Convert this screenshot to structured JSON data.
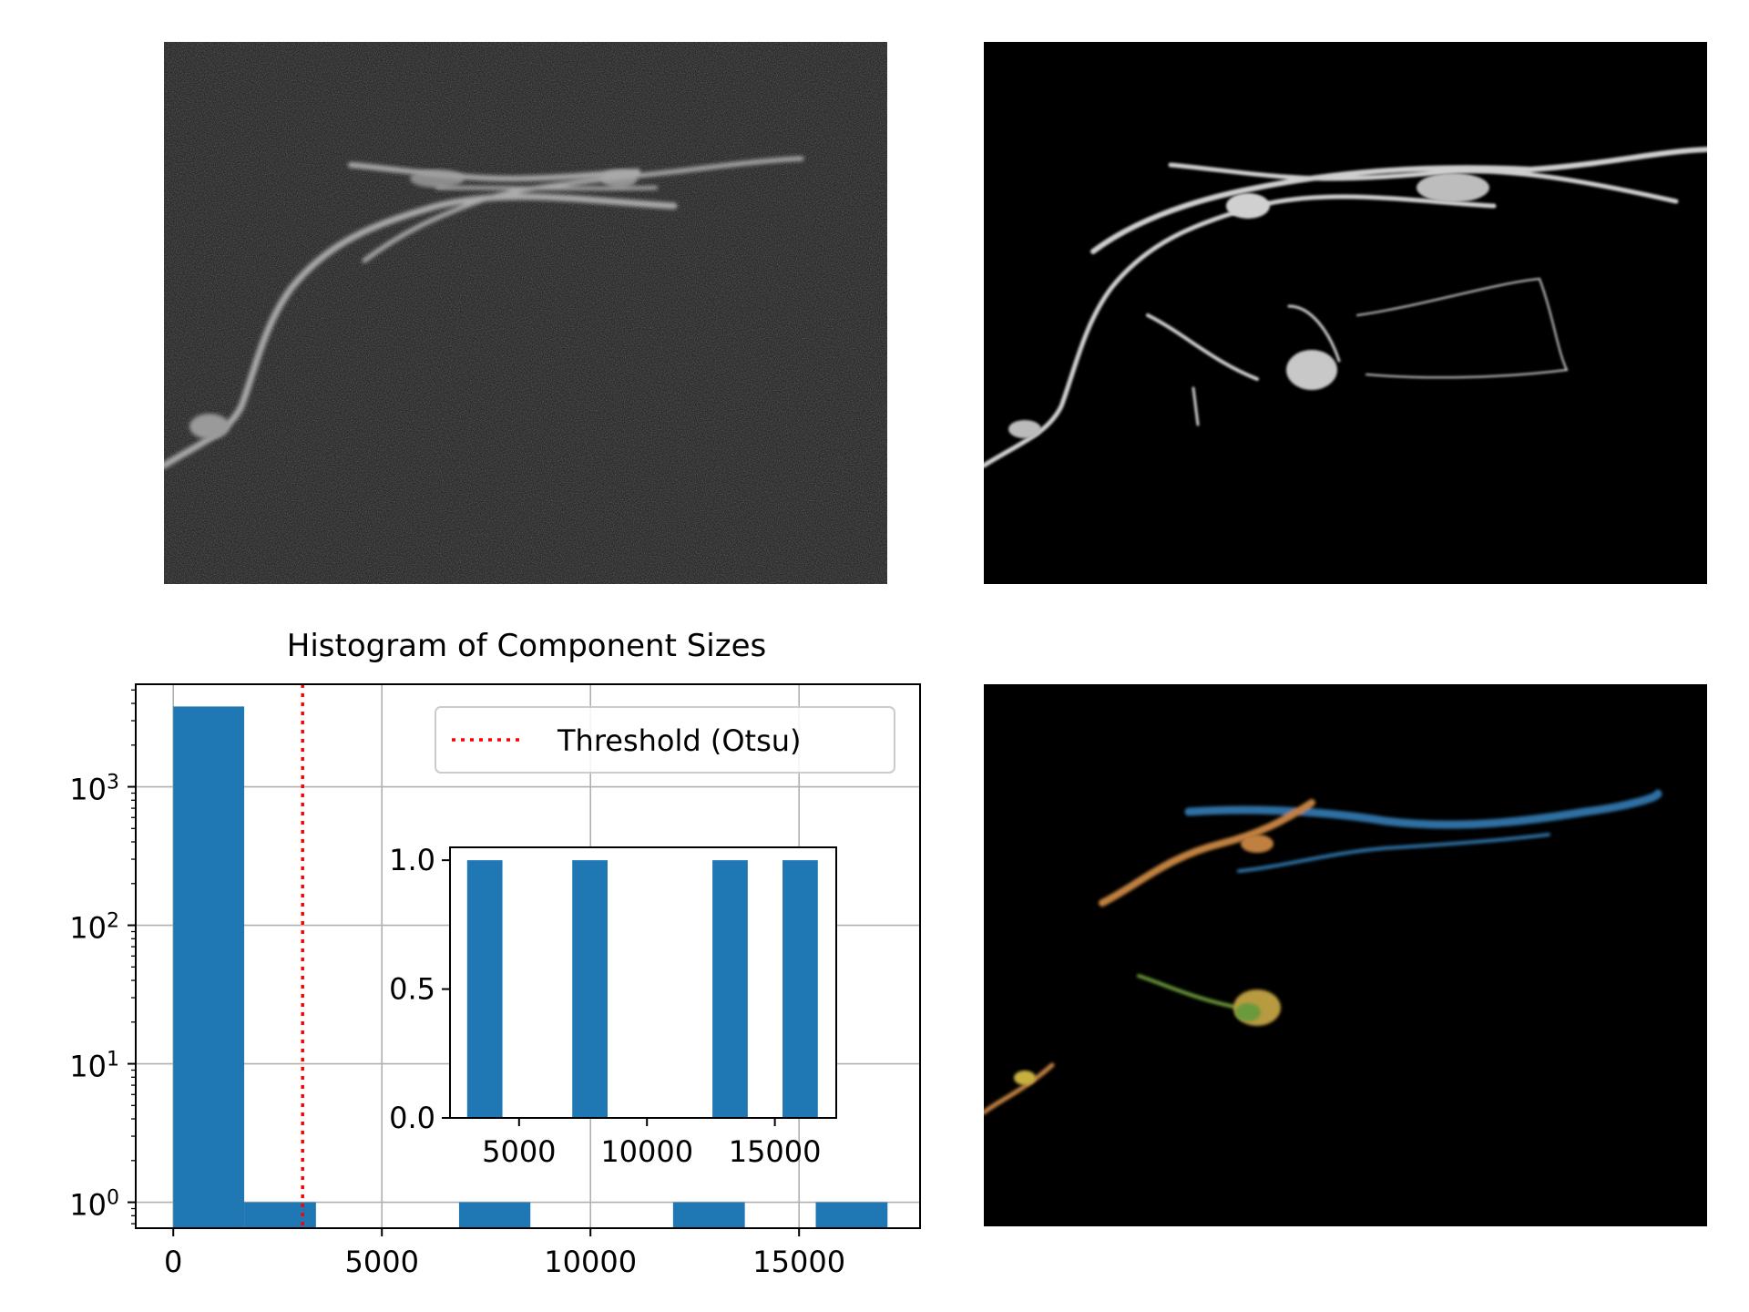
{
  "figure": {
    "panels": [
      {
        "id": "raw-image",
        "kind": "image",
        "description_colors": {
          "background": "#2a2a2a",
          "structure": "#bdbdbd"
        }
      },
      {
        "id": "filtered-image",
        "kind": "image",
        "description_colors": {
          "background": "#000000",
          "structure": "#d8d8d8"
        }
      },
      {
        "id": "labeled-image",
        "kind": "image",
        "description_colors": {
          "background": "#000000",
          "blue": "#2f6fa3",
          "orange": "#c08040",
          "green": "#6a9a3a",
          "yellow": "#c8b040"
        }
      }
    ]
  },
  "chart_data": [
    {
      "type": "bar",
      "title": "Histogram of Component Sizes",
      "xlabel": "",
      "ylabel": "",
      "yscale": "log",
      "xlim": [
        -900,
        17900
      ],
      "ylim": [
        0.65,
        5500
      ],
      "xticks": [
        "0",
        "5000",
        "10000",
        "15000"
      ],
      "xtick_values": [
        0,
        5000,
        10000,
        15000
      ],
      "yticks": [
        "10^0",
        "10^1",
        "10^2",
        "10^3"
      ],
      "ytick_values": [
        1,
        10,
        100,
        1000
      ],
      "grid": true,
      "bars": [
        {
          "x0": 0,
          "x1": 1700,
          "value": 3800
        },
        {
          "x0": 1700,
          "x1": 3420,
          "value": 1
        },
        {
          "x0": 6850,
          "x1": 8560,
          "value": 1
        },
        {
          "x0": 11980,
          "x1": 13700,
          "value": 1
        },
        {
          "x0": 15400,
          "x1": 17120,
          "value": 1
        }
      ],
      "threshold": {
        "value": 3100,
        "label": "Threshold (Otsu)",
        "color": "#ff0000",
        "style": "dotted"
      },
      "legend_position": "upper-right",
      "bar_color": "#1f77b4"
    },
    {
      "type": "bar",
      "role": "inset",
      "title": "",
      "xlim": [
        2300,
        17400
      ],
      "ylim": [
        0,
        1.05
      ],
      "xticks": [
        "5000",
        "10000",
        "15000"
      ],
      "xtick_values": [
        5000,
        10000,
        15000
      ],
      "yticks": [
        "0.0",
        "0.5",
        "1.0"
      ],
      "ytick_values": [
        0,
        0.5,
        1.0
      ],
      "bars": [
        {
          "x0": 2970,
          "x1": 4350,
          "value": 1
        },
        {
          "x0": 7080,
          "x1": 8460,
          "value": 1
        },
        {
          "x0": 12560,
          "x1": 13940,
          "value": 1
        },
        {
          "x0": 15300,
          "x1": 16680,
          "value": 1
        }
      ],
      "bar_color": "#1f77b4"
    }
  ]
}
